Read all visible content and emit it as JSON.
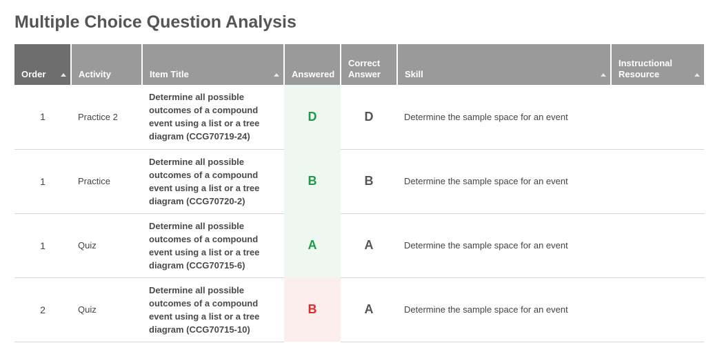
{
  "page": {
    "title": "Multiple Choice Question Analysis"
  },
  "columns": [
    {
      "key": "order",
      "label": "Order",
      "sortable": true,
      "active": true
    },
    {
      "key": "activity",
      "label": "Activity",
      "sortable": false
    },
    {
      "key": "item_title",
      "label": "Item Title",
      "sortable": true
    },
    {
      "key": "answered",
      "label": "Answered",
      "sortable": false
    },
    {
      "key": "correct_answer",
      "label": "Correct Answer",
      "sortable": false
    },
    {
      "key": "skill",
      "label": "Skill",
      "sortable": true
    },
    {
      "key": "instructional_resource",
      "label": "Instructional Resource",
      "sortable": true
    }
  ],
  "rows": [
    {
      "order": "1",
      "activity": "Practice 2",
      "item_title": "Determine all possible outcomes of a compound event using a list or a tree diagram (CCG70719-24)",
      "answered": "D",
      "correct_answer": "D",
      "skill": "Determine the sample space for an event",
      "instructional_resource": "",
      "status": "correct"
    },
    {
      "order": "1",
      "activity": "Practice",
      "item_title": "Determine all possible outcomes of a compound event using a list or a tree diagram (CCG70720-2)",
      "answered": "B",
      "correct_answer": "B",
      "skill": "Determine the sample space for an event",
      "instructional_resource": "",
      "status": "correct"
    },
    {
      "order": "1",
      "activity": "Quiz",
      "item_title": "Determine all possible outcomes of a compound event using a list or a tree diagram (CCG70715-6)",
      "answered": "A",
      "correct_answer": "A",
      "skill": "Determine the sample space for an event",
      "instructional_resource": "",
      "status": "correct"
    },
    {
      "order": "2",
      "activity": "Quiz",
      "item_title": "Determine all possible outcomes of a compound event using a list or a tree diagram (CCG70715-10)",
      "answered": "B",
      "correct_answer": "A",
      "skill": "Determine the sample space for an event",
      "instructional_resource": "",
      "status": "incorrect"
    }
  ],
  "colors": {
    "header_bg": "#9a9a9a",
    "header_active_bg": "#6e6e6e",
    "correct": "#1f9a47",
    "incorrect": "#e02a2a",
    "correct_bg": "#eef8f1",
    "incorrect_bg": "#fdeeee"
  }
}
